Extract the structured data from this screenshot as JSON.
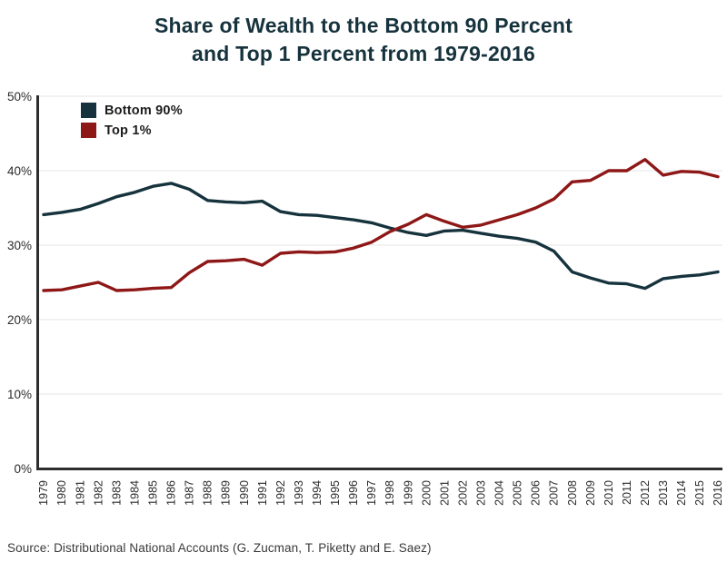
{
  "title": {
    "line1": "Share of Wealth to the Bottom 90 Percent",
    "line2": "and Top 1 Percent from 1979-2016"
  },
  "legend": {
    "items": [
      {
        "label": "Bottom 90%"
      },
      {
        "label": "Top 1%"
      }
    ]
  },
  "source": "Source: Distributional National Accounts (G. Zucman, T. Piketty and E. Saez)",
  "colors": {
    "title": "#16333d",
    "bottom90": "#16333d",
    "top1": "#8e1717",
    "grid": "#ededed",
    "axis": "#2d2d2d",
    "tick_text": "#2b2b2b"
  },
  "chart_data": {
    "type": "line",
    "title": "Share of Wealth to the Bottom 90 Percent and Top 1 Percent from 1979-2016",
    "x": [
      1979,
      1980,
      1981,
      1982,
      1983,
      1984,
      1985,
      1986,
      1987,
      1988,
      1989,
      1990,
      1991,
      1992,
      1993,
      1994,
      1995,
      1996,
      1997,
      1998,
      1999,
      2000,
      2001,
      2002,
      2003,
      2004,
      2005,
      2006,
      2007,
      2008,
      2009,
      2010,
      2011,
      2012,
      2013,
      2014,
      2015,
      2016
    ],
    "series": [
      {
        "name": "Bottom 90%",
        "color": "#16333d",
        "values": [
          34.1,
          34.4,
          34.8,
          35.6,
          36.5,
          37.1,
          37.9,
          38.3,
          37.5,
          36.0,
          35.8,
          35.7,
          35.9,
          34.5,
          34.1,
          34.0,
          33.7,
          33.4,
          33.0,
          32.3,
          31.7,
          31.3,
          31.9,
          32.0,
          31.6,
          31.2,
          30.9,
          30.4,
          29.2,
          26.4,
          25.6,
          24.9,
          24.8,
          24.2,
          25.5,
          25.8,
          26.0,
          26.4
        ]
      },
      {
        "name": "Top 1%",
        "color": "#8e1717",
        "values": [
          23.9,
          24.0,
          24.5,
          25.0,
          23.9,
          24.0,
          24.2,
          24.3,
          26.3,
          27.8,
          27.9,
          28.1,
          27.3,
          28.9,
          29.1,
          29.0,
          29.1,
          29.6,
          30.4,
          31.8,
          32.8,
          34.1,
          33.2,
          32.4,
          32.7,
          33.4,
          34.1,
          35.0,
          36.2,
          38.5,
          38.7,
          40.0,
          40.0,
          41.5,
          39.4,
          39.9,
          39.8,
          39.2
        ]
      }
    ],
    "xlabel": "",
    "ylabel": "",
    "ylim": [
      0,
      50
    ],
    "yticks": [
      0,
      10,
      20,
      30,
      40,
      50
    ],
    "ytick_labels": [
      "0%",
      "10%",
      "20%",
      "30%",
      "40%",
      "50%"
    ],
    "grid": "horizontal",
    "legend_position": "top-left"
  }
}
